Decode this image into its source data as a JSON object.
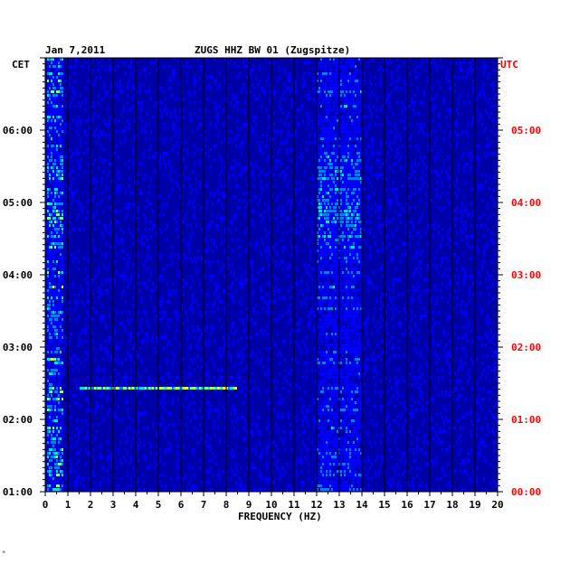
{
  "header": {
    "date": "Jan 7,2011",
    "station": "ZUGS HHZ BW 01 (Zugspitze)",
    "left_tz": "CET",
    "right_tz": "UTC",
    "corner_mark": "*"
  },
  "colors": {
    "background": "#0000a8",
    "grid": "#000000",
    "utc_text": "#ff0000",
    "colormap": [
      "#00008c",
      "#0000ff",
      "#0080ff",
      "#00e0ff",
      "#80ff80",
      "#ffff00",
      "#ff8000",
      "#ff0000"
    ]
  },
  "chart_data": {
    "type": "heatmap",
    "title": "ZUGS HHZ BW 01 (Zugspitze)",
    "date": "Jan 7,2011",
    "xlabel": "FREQUENCY (HZ)",
    "xlim": [
      0,
      20
    ],
    "x_ticks": [
      "0",
      "1",
      "2",
      "3",
      "4",
      "5",
      "6",
      "7",
      "8",
      "9",
      "10",
      "11",
      "12",
      "13",
      "14",
      "15",
      "16",
      "17",
      "18",
      "19",
      "20"
    ],
    "y_left_label": "CET",
    "y_right_label": "UTC",
    "y_left_ticks": [
      "01:00",
      "02:00",
      "03:00",
      "04:00",
      "05:00",
      "06:00"
    ],
    "y_right_ticks": [
      "00:00",
      "01:00",
      "02:00",
      "03:00",
      "04:00",
      "05:00"
    ],
    "ylim_hours_utc": [
      0,
      6
    ],
    "grid": true,
    "features": [
      {
        "band_hz": [
          0.1,
          0.8
        ],
        "time_utc": "00:00-06:00",
        "level": "high"
      },
      {
        "band_hz": [
          12,
          14
        ],
        "time_utc": "00:00-06:00",
        "level": "medium"
      },
      {
        "band_hz": [
          1.5,
          8.5
        ],
        "time_utc": "01:25",
        "level": "high"
      }
    ]
  }
}
